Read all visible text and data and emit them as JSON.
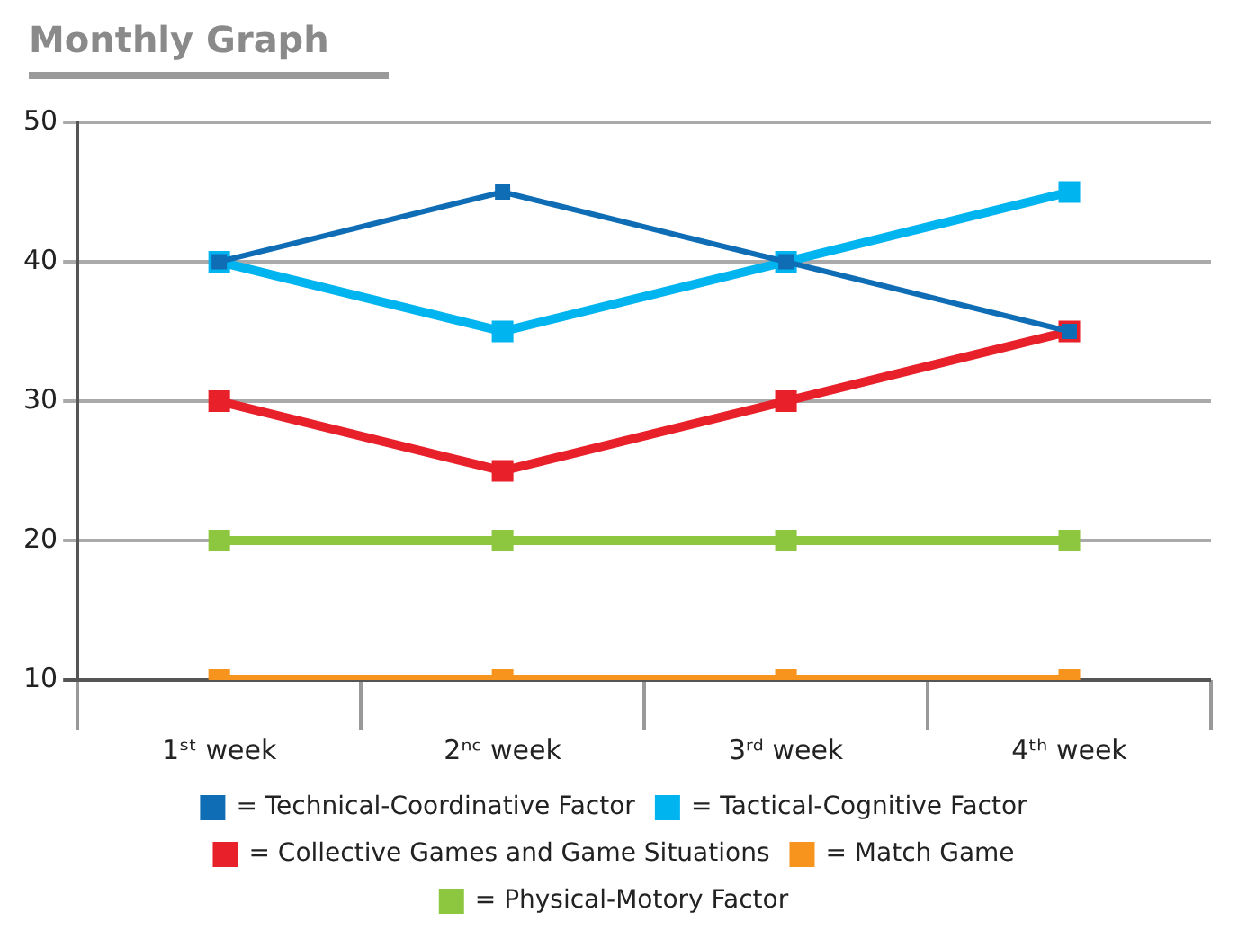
{
  "chart_data": {
    "type": "line",
    "title": "Monthly Graph",
    "categories": [
      "1ˢᵗ week",
      "2ⁿᶜ week",
      "3ʳᵈ week",
      "4ᵗʰ week"
    ],
    "series": [
      {
        "name": "= Technical-Coordinative Factor",
        "color": "#0f6db5",
        "values": [
          40,
          45,
          40,
          35
        ]
      },
      {
        "name": "= Tactical-Cognitive Factor",
        "color": "#00b4f0",
        "values": [
          40,
          35,
          40,
          45
        ]
      },
      {
        "name": "= Collective Games and Game Situations",
        "color": "#e8202a",
        "values": [
          30,
          25,
          30,
          35
        ]
      },
      {
        "name": "= Match Game",
        "color": "#f7941d",
        "values": [
          10,
          10,
          10,
          10
        ]
      },
      {
        "name": "= Physical-Motory Factor",
        "color": "#8dc63f",
        "values": [
          20,
          20,
          20,
          20
        ]
      }
    ],
    "ylim": [
      10,
      50
    ],
    "yticks": [
      10,
      20,
      30,
      40,
      50
    ],
    "grid": "y",
    "legend": "bottom",
    "marker": "square",
    "line_style": "solid"
  }
}
